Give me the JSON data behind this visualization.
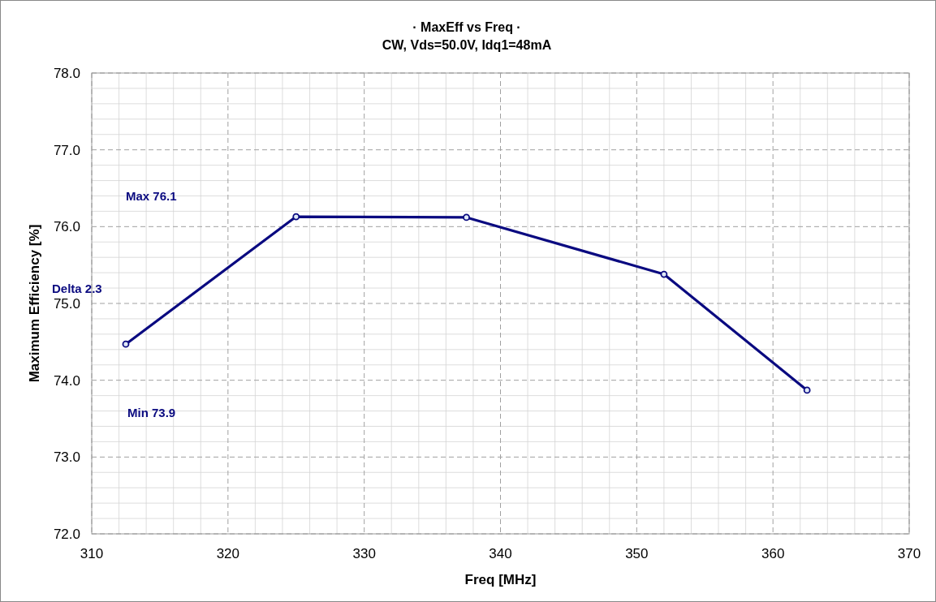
{
  "chart_data": {
    "type": "line",
    "title": "· MaxEff vs Freq ·",
    "subtitle": "CW, Vds=50.0V, Idq1=48mA",
    "xlabel": "Freq  [MHz]",
    "ylabel": "Maximum Efficiency [%]",
    "x": [
      312.5,
      325,
      337.5,
      352,
      362.5
    ],
    "series": [
      {
        "color": "#0a0a80",
        "values": [
          74.47,
          76.13,
          76.12,
          75.38,
          73.87
        ]
      }
    ],
    "xlim": [
      310,
      370
    ],
    "xticks": [
      310,
      320,
      330,
      340,
      350,
      360,
      370
    ],
    "ylim": [
      72,
      78
    ],
    "yticks": [
      {
        "value": 72,
        "label": "72.0"
      },
      {
        "value": 73,
        "label": "73.0"
      },
      {
        "value": 74,
        "label": "74.0"
      },
      {
        "value": 75,
        "label": "75.0"
      },
      {
        "value": 76,
        "label": "76.0"
      },
      {
        "value": 77,
        "label": "77.0"
      },
      {
        "value": 78,
        "label": "78.0"
      }
    ],
    "grid": true,
    "marker": "circle",
    "line_style": "solid",
    "annotations": [
      "Max 76.1",
      "Delta 2.3",
      "Min 73.9"
    ]
  }
}
